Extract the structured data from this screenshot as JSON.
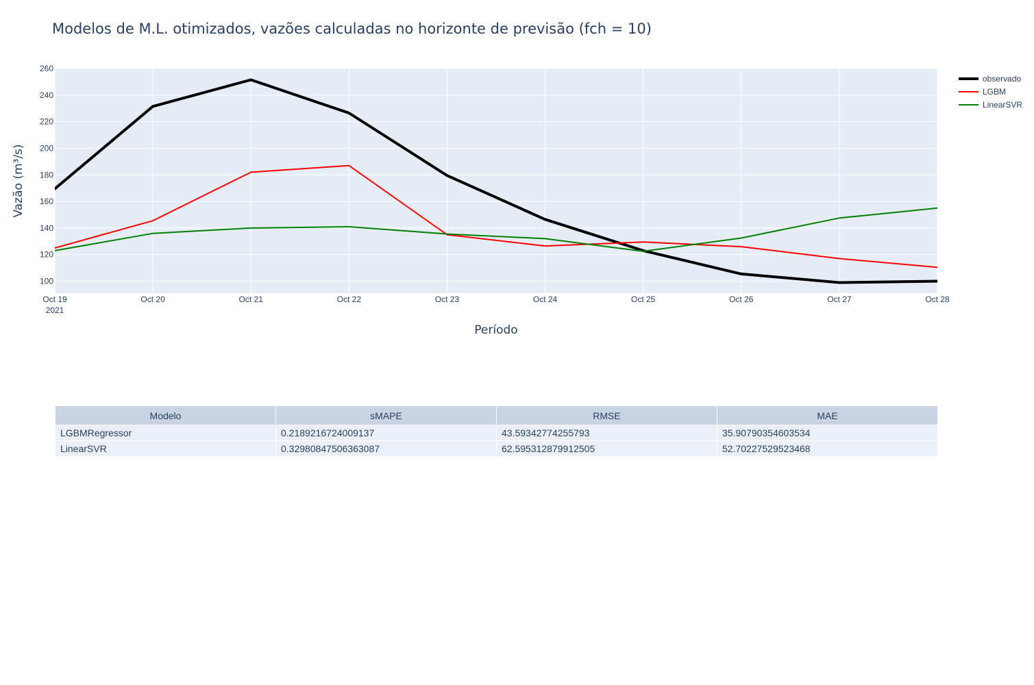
{
  "chart_data": {
    "type": "line",
    "title": "Modelos de M.L. otimizados, vazões calculadas no horizonte de previsão (fch = 10)",
    "xlabel": "Período",
    "ylabel": "Vazão (m³/s)",
    "x": [
      "2021-10-19",
      "2021-10-20",
      "2021-10-21",
      "2021-10-22",
      "2021-10-23",
      "2021-10-24",
      "2021-10-25",
      "2021-10-26",
      "2021-10-27",
      "2021-10-28"
    ],
    "x_tick_labels": [
      "Oct 19",
      "Oct 20",
      "Oct 21",
      "Oct 22",
      "Oct 23",
      "Oct 24",
      "Oct 25",
      "Oct 26",
      "Oct 27",
      "Oct 28"
    ],
    "x_tick_year": "2021",
    "ylim": [
      91,
      260
    ],
    "y_ticks": [
      100,
      120,
      140,
      160,
      180,
      200,
      220,
      240,
      260
    ],
    "grid": true,
    "legend_position": "top-right",
    "series": [
      {
        "name": "observado",
        "color": "#000000",
        "width": 4,
        "values": [
          169.5,
          231.5,
          251.5,
          226.5,
          179.5,
          146.5,
          123.0,
          105.5,
          99.0,
          100.0
        ]
      },
      {
        "name": "LGBM",
        "color": "#ff0000",
        "width": 2,
        "values": [
          125.0,
          145.5,
          182.0,
          187.0,
          135.0,
          126.5,
          129.5,
          126.0,
          117.0,
          110.5
        ]
      },
      {
        "name": "LinearSVR",
        "color": "#008000",
        "width": 2,
        "values": [
          123.0,
          136.0,
          140.0,
          141.0,
          135.5,
          132.0,
          122.5,
          132.5,
          147.5,
          155.0
        ]
      }
    ]
  },
  "table": {
    "headers": [
      "Modelo",
      "sMAPE",
      "RMSE",
      "MAE"
    ],
    "rows": [
      [
        "LGBMRegressor",
        "0.2189216724009137",
        "43.59342774255793",
        "35.90790354603534"
      ],
      [
        "LinearSVR",
        "0.32980847506363087",
        "62.595312879912505",
        "52.70227529523468"
      ]
    ]
  },
  "colors": {
    "plot_bg": "#e5ecf6",
    "grid": "#ffffff",
    "header_bg": "#c8d4e3",
    "cell_bg": "#ebf0f8",
    "text": "#2a3f5f"
  }
}
